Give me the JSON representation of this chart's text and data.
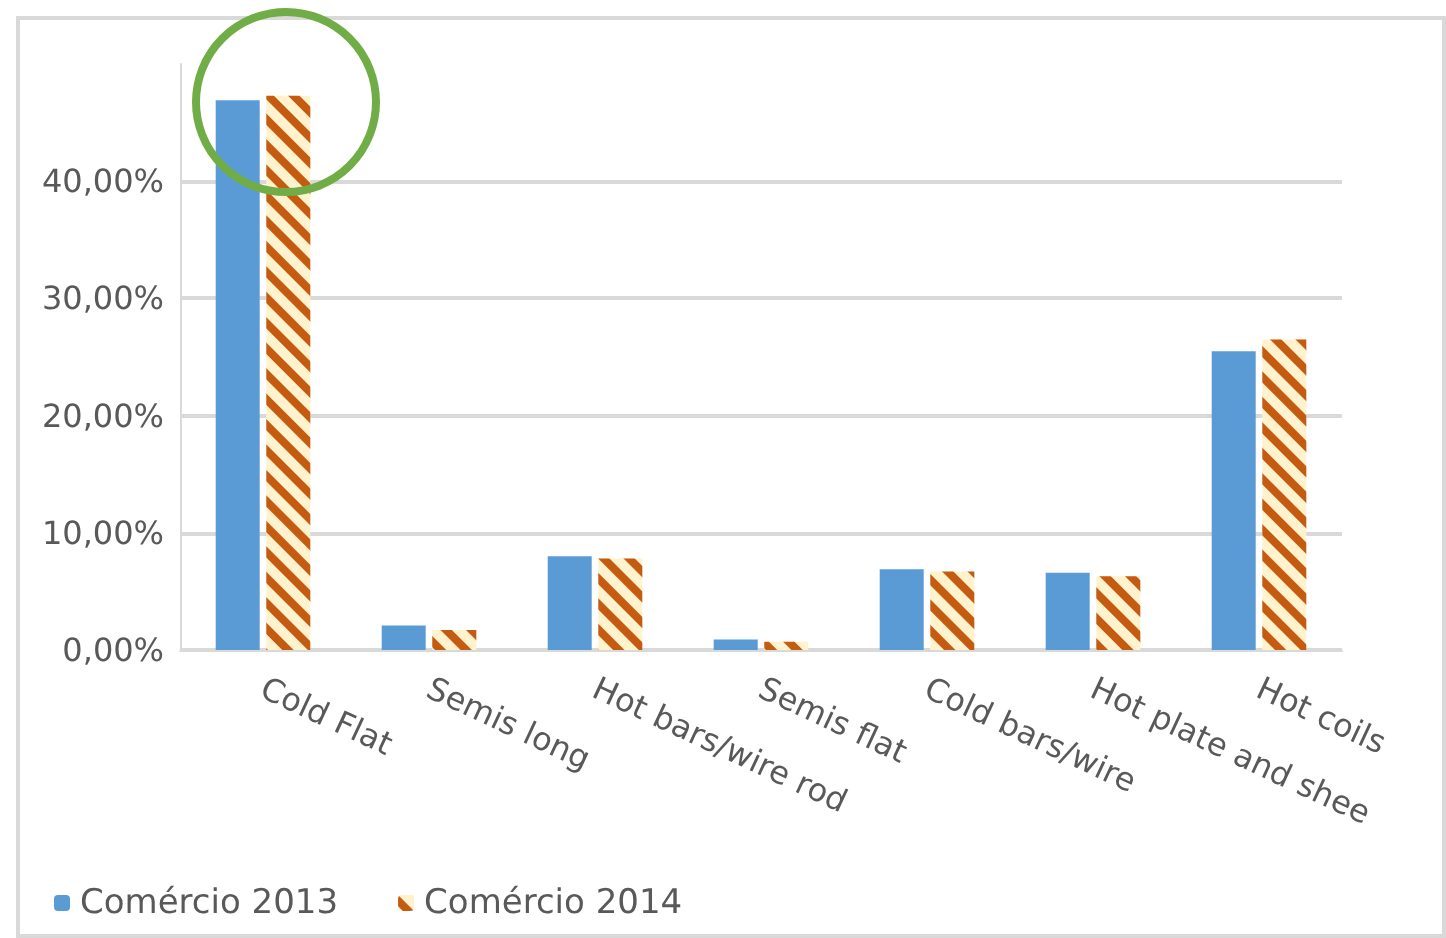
{
  "chart_data": {
    "type": "bar",
    "categories": [
      "Cold Flat",
      "Semis long",
      "Hot bars/wire rod",
      "Semis flat",
      "Cold bars/wire",
      "Hot plate and shee",
      "Hot coils"
    ],
    "series": [
      {
        "name": "Comércio 2013",
        "color": "#5b9bd5",
        "values": [
          46.9,
          2.1,
          8.0,
          0.9,
          6.9,
          6.6,
          25.5
        ]
      },
      {
        "name": "Comércio 2014",
        "color": "#c55a11",
        "values": [
          47.3,
          1.7,
          7.8,
          0.7,
          6.7,
          6.3,
          26.5
        ]
      }
    ],
    "ylim": [
      0,
      50
    ],
    "yticks": [
      {
        "value": 0,
        "label": "0,00%"
      },
      {
        "value": 10,
        "label": "10,00%"
      },
      {
        "value": 20,
        "label": "20,00%"
      },
      {
        "value": 30,
        "label": "30,00%"
      },
      {
        "value": 40,
        "label": "40,00%"
      }
    ],
    "grid": "y",
    "legend": "bottom left"
  }
}
